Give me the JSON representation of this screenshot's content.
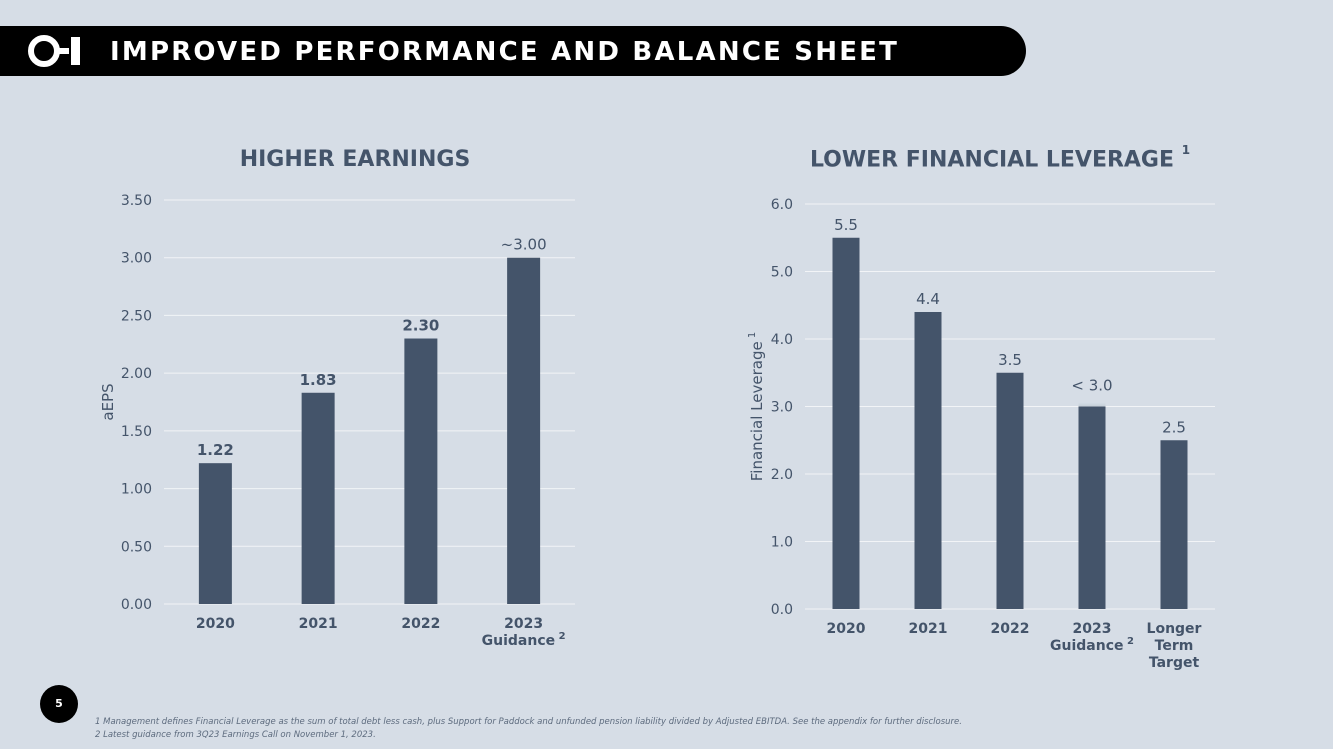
{
  "header": {
    "title": "IMPROVED PERFORMANCE AND BALANCE SHEET",
    "logo_icon": "oi-logo-icon"
  },
  "page_number": "5",
  "footnotes": [
    "1  Management defines Financial Leverage as the sum of total debt less cash, plus Support for Paddock and unfunded pension liability divided by Adjusted EBITDA.  See the appendix for further disclosure.",
    "2  Latest guidance from 3Q23 Earnings Call on November 1, 2023."
  ],
  "colors": {
    "bar": "#44546a",
    "background": "#d6dde6",
    "header": "#000000",
    "grid": "#f2f4f7"
  },
  "chart_data": [
    {
      "type": "bar",
      "title": "HIGHER EARNINGS",
      "title_sup": "",
      "ylabel": "aEPS",
      "ylabel_sup": "",
      "ylim": [
        0,
        3.5
      ],
      "yticks": [
        "0.00",
        "0.50",
        "1.00",
        "1.50",
        "2.00",
        "2.50",
        "3.00",
        "3.50"
      ],
      "categories": [
        {
          "lines": [
            "2020"
          ],
          "sup": ""
        },
        {
          "lines": [
            "2021"
          ],
          "sup": ""
        },
        {
          "lines": [
            "2022"
          ],
          "sup": ""
        },
        {
          "lines": [
            "2023",
            "Guidance"
          ],
          "sup": "2"
        }
      ],
      "values": [
        1.22,
        1.83,
        2.3,
        3.0
      ],
      "data_labels": [
        "1.22",
        "1.83",
        "2.30",
        "~3.00"
      ],
      "data_label_bold": [
        true,
        true,
        true,
        false
      ],
      "grid": true
    },
    {
      "type": "bar",
      "title": "LOWER FINANCIAL LEVERAGE",
      "title_sup": "1",
      "ylabel": "Financial Leverage",
      "ylabel_sup": "1",
      "ylim": [
        0,
        6.0
      ],
      "yticks": [
        "0.0",
        "1.0",
        "2.0",
        "3.0",
        "4.0",
        "5.0",
        "6.0"
      ],
      "categories": [
        {
          "lines": [
            "2020"
          ],
          "sup": ""
        },
        {
          "lines": [
            "2021"
          ],
          "sup": ""
        },
        {
          "lines": [
            "2022"
          ],
          "sup": ""
        },
        {
          "lines": [
            "2023",
            "Guidance"
          ],
          "sup": "2"
        },
        {
          "lines": [
            "Longer",
            "Term",
            "Target"
          ],
          "sup": ""
        }
      ],
      "values": [
        5.5,
        4.4,
        3.5,
        3.0,
        2.5
      ],
      "data_labels": [
        "5.5",
        "4.4",
        "3.5",
        "< 3.0",
        "2.5"
      ],
      "data_label_bold": [
        false,
        false,
        false,
        false,
        false
      ],
      "fade_top": [
        false,
        false,
        false,
        true,
        false
      ],
      "grid": true
    }
  ]
}
